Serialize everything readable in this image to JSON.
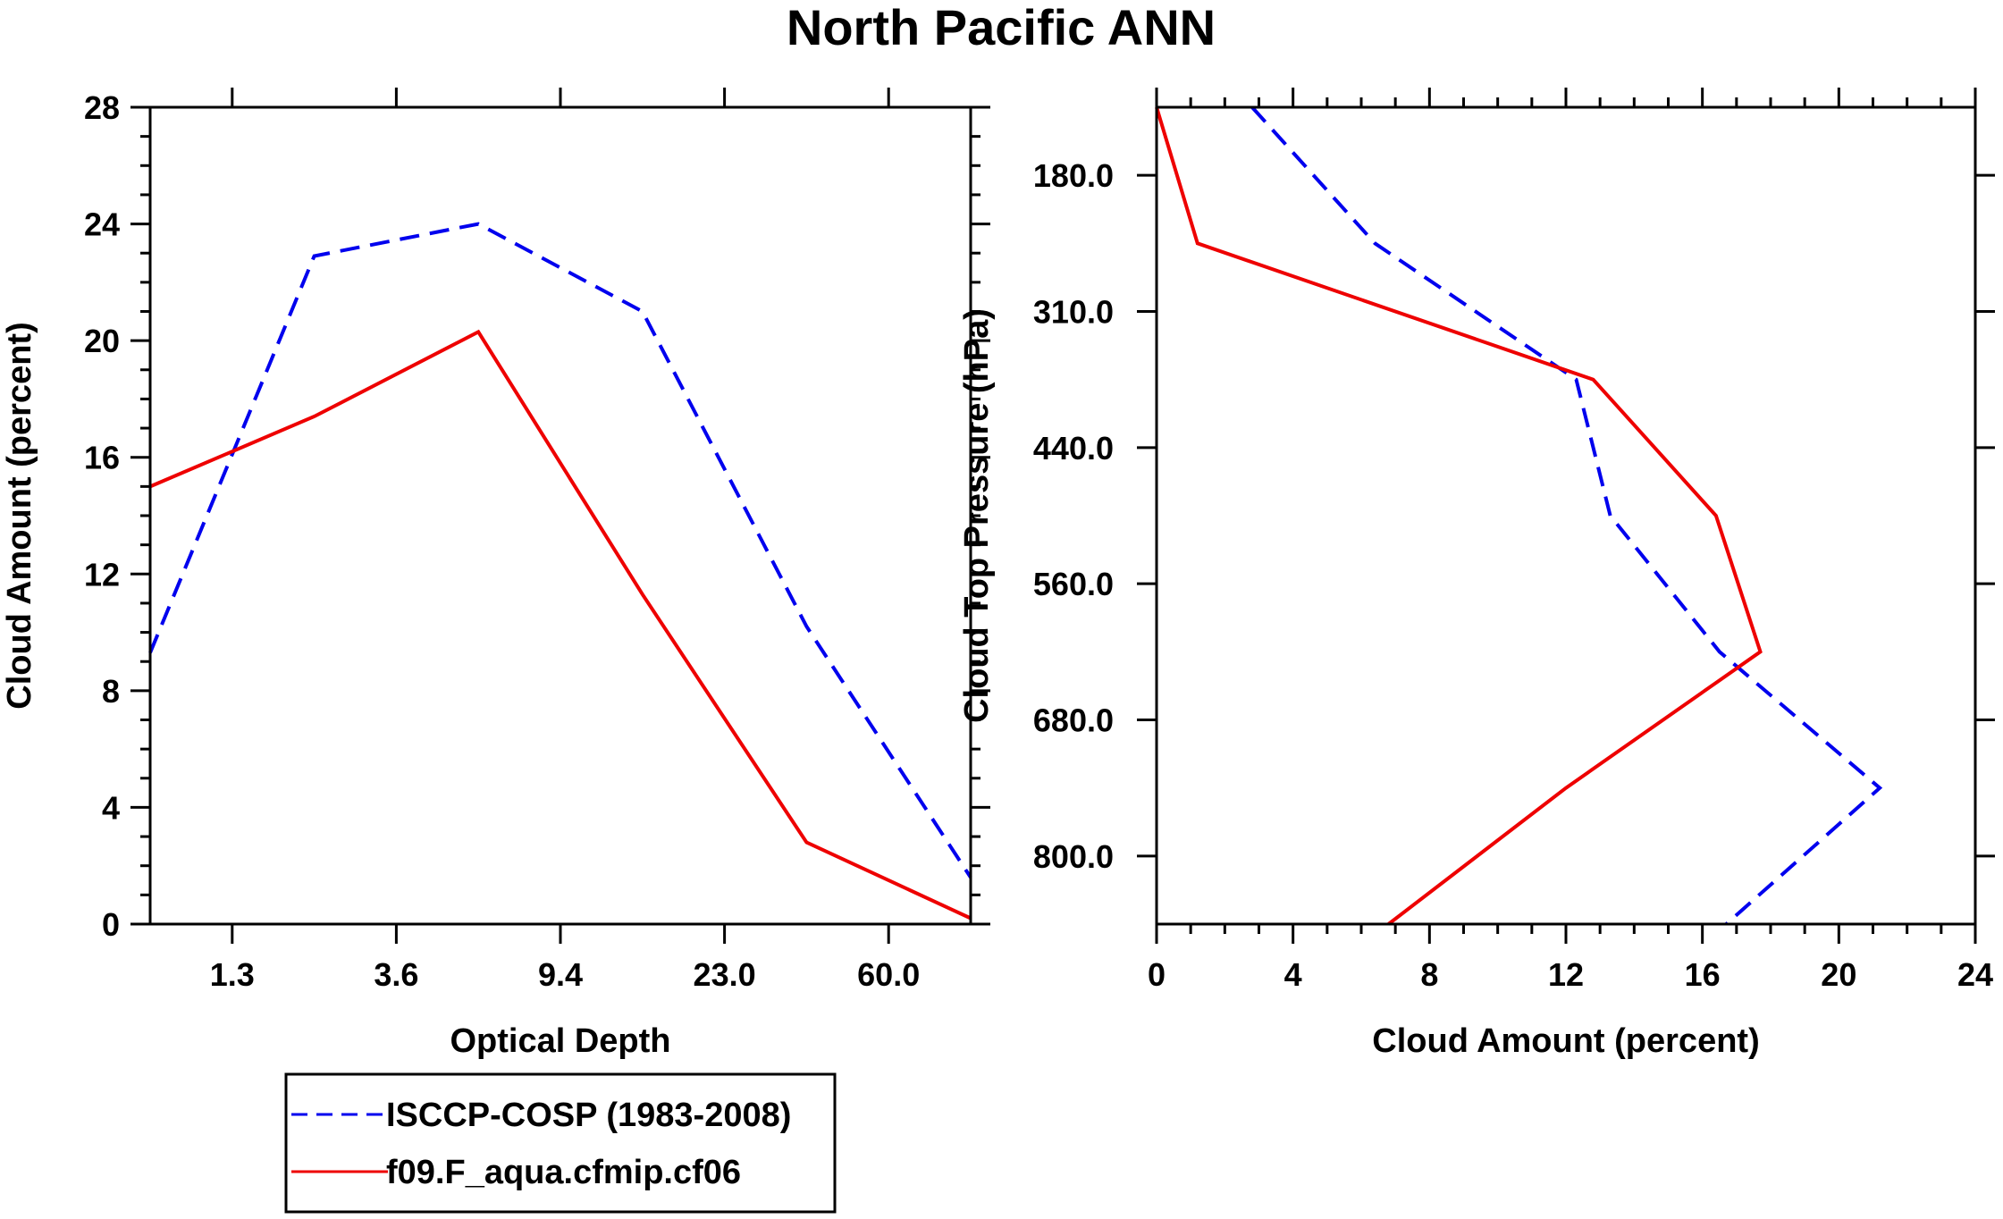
{
  "title": "North Pacific ANN",
  "colors": {
    "obs": "#0000ee",
    "model": "#ee0000",
    "axis": "#000000"
  },
  "chart_data": [
    {
      "type": "line",
      "xlabel": "Optical Depth",
      "ylabel": "Cloud Amount (percent)",
      "xlim": [
        0,
        10
      ],
      "ylim": [
        0,
        28
      ],
      "x_ticks": [
        {
          "pos": 1,
          "label": "1.3"
        },
        {
          "pos": 3,
          "label": "3.6"
        },
        {
          "pos": 5,
          "label": "9.4"
        },
        {
          "pos": 7,
          "label": "23.0"
        },
        {
          "pos": 9,
          "label": "60.0"
        }
      ],
      "x_edges": [
        0,
        2,
        4,
        6,
        8,
        10
      ],
      "y_ticks": [
        "0",
        "4",
        "8",
        "12",
        "16",
        "20",
        "24",
        "28"
      ],
      "y_minor_step": 1,
      "series": [
        {
          "name": "ISCCP-COSP (1983-2008)",
          "style": "dashed",
          "color": "#0000ee",
          "x": [
            0,
            2,
            4,
            6,
            8,
            10
          ],
          "y": [
            9.3,
            22.9,
            24.0,
            21.0,
            10.2,
            1.6
          ]
        },
        {
          "name": "f09.F_aqua.cfmip.cf06",
          "style": "solid",
          "color": "#ee0000",
          "x": [
            0,
            2,
            4,
            6,
            8,
            10
          ],
          "y": [
            15.0,
            17.4,
            20.3,
            11.3,
            2.8,
            0.2
          ]
        }
      ]
    },
    {
      "type": "line",
      "xlabel": "Cloud Amount (percent)",
      "ylabel": "Cloud Top Pressure (hPa)",
      "xlim": [
        0,
        24
      ],
      "ylim": [
        0,
        12
      ],
      "x_ticks": [
        "0",
        "4",
        "8",
        "12",
        "16",
        "20",
        "24"
      ],
      "x_minor_step": 1,
      "y_ticks": [
        {
          "pos": 1,
          "label": "180.0"
        },
        {
          "pos": 3,
          "label": "310.0"
        },
        {
          "pos": 5,
          "label": "440.0"
        },
        {
          "pos": 7,
          "label": "560.0"
        },
        {
          "pos": 9,
          "label": "680.0"
        },
        {
          "pos": 11,
          "label": "800.0"
        }
      ],
      "y_edges": [
        0,
        2,
        4,
        6,
        8,
        10,
        12
      ],
      "series": [
        {
          "name": "ISCCP-COSP (1983-2008)",
          "style": "dashed",
          "color": "#0000ee",
          "x": [
            2.8,
            6.4,
            12.3,
            13.3,
            16.5,
            21.2,
            16.7
          ],
          "y": [
            0,
            2,
            4,
            6,
            8,
            10,
            12
          ]
        },
        {
          "name": "f09.F_aqua.cfmip.cf06",
          "style": "solid",
          "color": "#ee0000",
          "x": [
            0,
            1.2,
            12.8,
            16.4,
            17.7,
            12.0,
            6.8
          ],
          "y": [
            0,
            2,
            4,
            6,
            8,
            10,
            12
          ]
        }
      ]
    }
  ],
  "legend": {
    "items": [
      {
        "label": "ISCCP-COSP (1983-2008)",
        "style": "dashed",
        "color": "#0000ee"
      },
      {
        "label": "f09.F_aqua.cfmip.cf06",
        "style": "solid",
        "color": "#ee0000"
      }
    ]
  }
}
